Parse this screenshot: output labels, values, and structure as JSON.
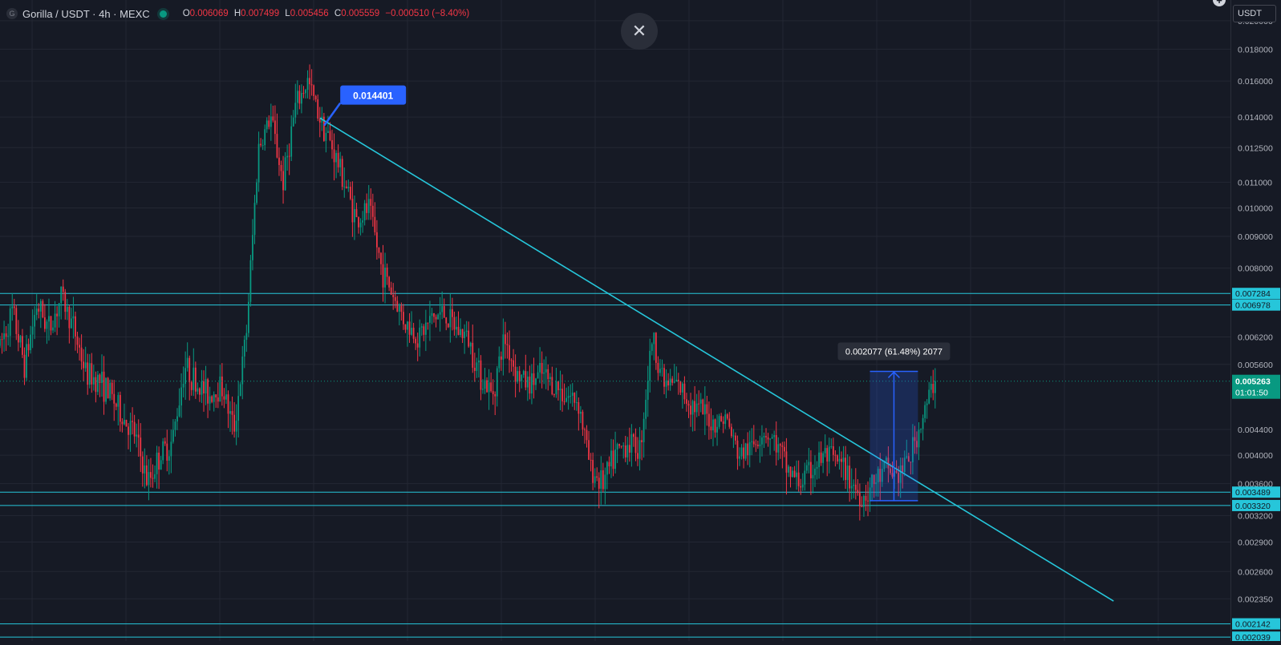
{
  "header": {
    "logo_letter": "G",
    "title": "Gorilla / USDT · 4h · MEXC",
    "ohlc": {
      "o_label": "O",
      "o": "0.006069",
      "h_label": "H",
      "h": "0.007499",
      "l_label": "L",
      "l": "0.005456",
      "c_label": "C",
      "c": "0.005559",
      "change": "−0.000510 (−8.40%)"
    }
  },
  "controls": {
    "close_glyph": "✕",
    "currency": "USDT",
    "plus_glyph": "+"
  },
  "colors": {
    "bg": "#161a25",
    "grid": "#232733",
    "up": "#089981",
    "down": "#f23645",
    "line": "#26c6da",
    "measure": "#2962ff",
    "text": "#d1d4dc",
    "axis_text": "#b2b5be"
  },
  "chart_data": {
    "type": "candlestick",
    "scale": "log",
    "ylim": [
      0.00201,
      0.0216
    ],
    "y_ticks": [
      "0.020000",
      "0.018000",
      "0.016000",
      "0.014000",
      "0.012500",
      "0.011000",
      "0.010000",
      "0.009000",
      "0.008000",
      "0.006200",
      "0.005600",
      "0.004400",
      "0.004000",
      "0.003600",
      "0.003200",
      "0.002900",
      "0.002600",
      "0.002350"
    ],
    "horizontal_levels": [
      "0.007284",
      "0.006978",
      "0.003489",
      "0.003320",
      "0.002142",
      "0.002039"
    ],
    "current_price": {
      "value": "0.005263",
      "countdown": "01:01:50"
    },
    "trendline": {
      "from": {
        "bar": 0.26,
        "price": 0.01395
      },
      "to": {
        "bar": 0.905,
        "price": 0.00233
      }
    },
    "annotation": {
      "label": "0.014401",
      "bar": 0.27,
      "price": 0.0144
    },
    "measure": {
      "from_price": 0.00338,
      "to_price": 0.005458,
      "bar_start": 0.707,
      "bar_end": 0.746,
      "label": "0.002077 (61.48%) 2077"
    },
    "path": [
      [
        0.0,
        0.006
      ],
      [
        0.01,
        0.0068
      ],
      [
        0.02,
        0.0056
      ],
      [
        0.03,
        0.007
      ],
      [
        0.04,
        0.0064
      ],
      [
        0.05,
        0.0072
      ],
      [
        0.06,
        0.0064
      ],
      [
        0.07,
        0.0054
      ],
      [
        0.08,
        0.0053
      ],
      [
        0.09,
        0.005
      ],
      [
        0.1,
        0.0046
      ],
      [
        0.11,
        0.0043
      ],
      [
        0.12,
        0.0036
      ],
      [
        0.13,
        0.004
      ],
      [
        0.14,
        0.0042
      ],
      [
        0.15,
        0.0056
      ],
      [
        0.16,
        0.0052
      ],
      [
        0.17,
        0.005
      ],
      [
        0.18,
        0.0052
      ],
      [
        0.19,
        0.0044
      ],
      [
        0.2,
        0.0062
      ],
      [
        0.21,
        0.0125
      ],
      [
        0.22,
        0.014
      ],
      [
        0.23,
        0.011
      ],
      [
        0.24,
        0.0145
      ],
      [
        0.25,
        0.016
      ],
      [
        0.26,
        0.014
      ],
      [
        0.27,
        0.0125
      ],
      [
        0.28,
        0.011
      ],
      [
        0.29,
        0.0095
      ],
      [
        0.3,
        0.01
      ],
      [
        0.31,
        0.008
      ],
      [
        0.32,
        0.0072
      ],
      [
        0.33,
        0.0065
      ],
      [
        0.34,
        0.0062
      ],
      [
        0.35,
        0.0066
      ],
      [
        0.36,
        0.0068
      ],
      [
        0.37,
        0.0064
      ],
      [
        0.38,
        0.0062
      ],
      [
        0.39,
        0.0054
      ],
      [
        0.4,
        0.005
      ],
      [
        0.41,
        0.0062
      ],
      [
        0.42,
        0.0054
      ],
      [
        0.43,
        0.0052
      ],
      [
        0.44,
        0.0054
      ],
      [
        0.45,
        0.0052
      ],
      [
        0.46,
        0.005
      ],
      [
        0.47,
        0.0049
      ],
      [
        0.48,
        0.0038
      ],
      [
        0.49,
        0.0036
      ],
      [
        0.5,
        0.004
      ],
      [
        0.51,
        0.0042
      ],
      [
        0.52,
        0.0041
      ],
      [
        0.53,
        0.0062
      ],
      [
        0.54,
        0.0052
      ],
      [
        0.55,
        0.0052
      ],
      [
        0.56,
        0.0049
      ],
      [
        0.57,
        0.0047
      ],
      [
        0.58,
        0.0045
      ],
      [
        0.59,
        0.0046
      ],
      [
        0.6,
        0.004
      ],
      [
        0.61,
        0.0041
      ],
      [
        0.62,
        0.0044
      ],
      [
        0.63,
        0.0042
      ],
      [
        0.64,
        0.0038
      ],
      [
        0.65,
        0.0036
      ],
      [
        0.66,
        0.0038
      ],
      [
        0.67,
        0.004
      ],
      [
        0.68,
        0.0039
      ],
      [
        0.69,
        0.0037
      ],
      [
        0.7,
        0.0034
      ],
      [
        0.71,
        0.0036
      ],
      [
        0.72,
        0.0038
      ],
      [
        0.73,
        0.0037
      ],
      [
        0.74,
        0.004
      ],
      [
        0.75,
        0.0046
      ],
      [
        0.76,
        0.0053
      ]
    ]
  }
}
